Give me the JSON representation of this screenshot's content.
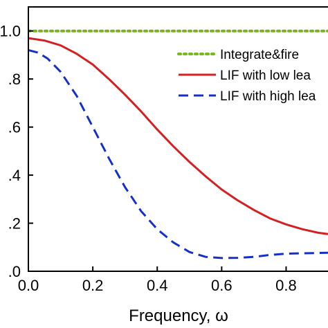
{
  "chart_data": {
    "type": "line",
    "title": "",
    "xlabel": "Frequency, ω",
    "ylabel": "",
    "xlim": [
      0.0,
      0.93
    ],
    "ylim": [
      0.0,
      1.1
    ],
    "grid": false,
    "legend": "top-right",
    "x_ticks": [
      0.0,
      0.2,
      0.4,
      0.6,
      0.8
    ],
    "x_tick_labels": [
      "0.0",
      "0.2",
      "0.4",
      "0.6",
      "0.8"
    ],
    "y_ticks": [
      0.0,
      0.2,
      0.4,
      0.6,
      0.8,
      1.0
    ],
    "y_tick_labels": [
      ".0",
      ".2",
      ".4",
      ".6",
      ".8",
      "1.0"
    ],
    "series": [
      {
        "name": "Integrate&fire",
        "color": "#77b51f",
        "style": "dotted",
        "x": [
          0.0,
          0.93
        ],
        "y": [
          1.0,
          1.0
        ]
      },
      {
        "name": "LIF with low lea",
        "color": "#d42020",
        "style": "solid",
        "x": [
          0.0,
          0.05,
          0.1,
          0.15,
          0.2,
          0.25,
          0.3,
          0.35,
          0.4,
          0.45,
          0.5,
          0.55,
          0.6,
          0.65,
          0.7,
          0.75,
          0.8,
          0.85,
          0.9,
          0.93
        ],
        "y": [
          0.97,
          0.96,
          0.94,
          0.905,
          0.86,
          0.8,
          0.735,
          0.665,
          0.59,
          0.52,
          0.455,
          0.395,
          0.34,
          0.295,
          0.255,
          0.22,
          0.195,
          0.175,
          0.16,
          0.155
        ]
      },
      {
        "name": "LIF with high lea",
        "color": "#1530c8",
        "style": "dashed",
        "x": [
          0.0,
          0.03,
          0.06,
          0.1,
          0.15,
          0.2,
          0.25,
          0.3,
          0.35,
          0.4,
          0.45,
          0.5,
          0.55,
          0.6,
          0.65,
          0.7,
          0.75,
          0.8,
          0.85,
          0.9,
          0.93
        ],
        "y": [
          0.92,
          0.91,
          0.885,
          0.83,
          0.73,
          0.6,
          0.47,
          0.35,
          0.25,
          0.175,
          0.12,
          0.08,
          0.06,
          0.055,
          0.056,
          0.06,
          0.068,
          0.073,
          0.075,
          0.076,
          0.077
        ]
      }
    ]
  }
}
